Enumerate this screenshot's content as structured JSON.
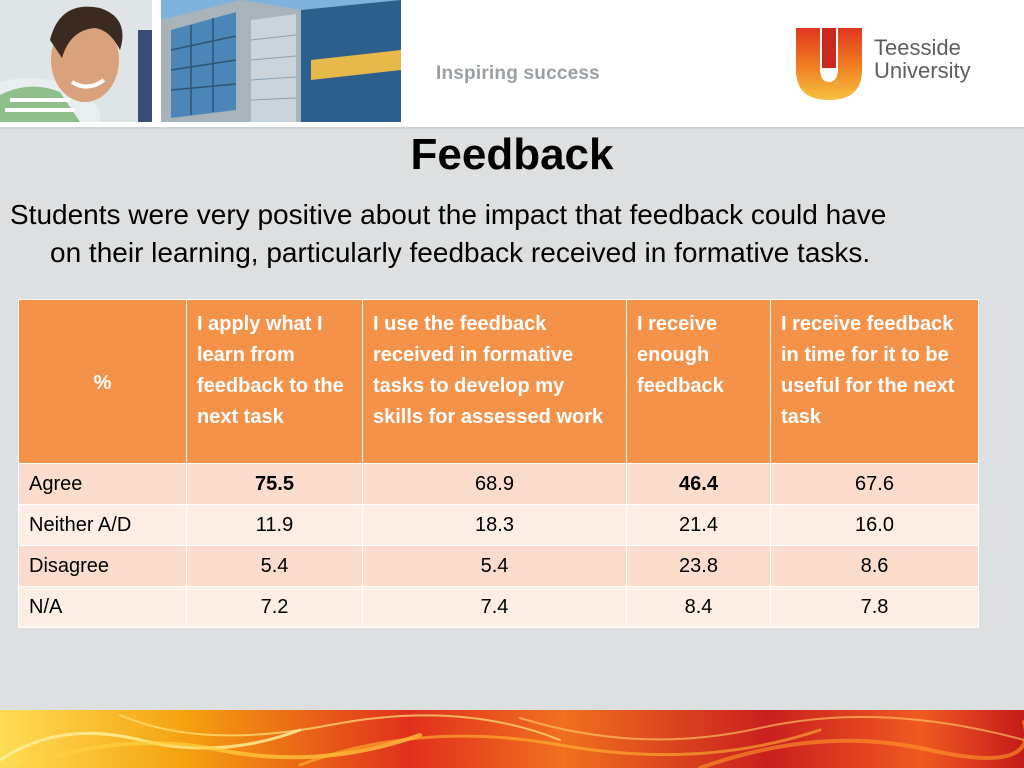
{
  "header": {
    "tagline": "Inspiring success",
    "logo_words": [
      "Teesside",
      "University"
    ]
  },
  "slide": {
    "title": "Feedback",
    "intro_line1": "Students were very positive about the impact that feedback could have",
    "intro_line2": "on their learning, particularly feedback received in formative tasks."
  },
  "table": {
    "headers": [
      "%",
      "I apply what I learn from feedback to the next task",
      "I use the feedback received in formative tasks to develop my skills for assessed work",
      "I receive enough feedback",
      "I receive feedback in time for it to be useful for the next task"
    ],
    "rows": [
      {
        "label": "Agree",
        "values": [
          "75.5",
          "68.9",
          "46.4",
          "67.6"
        ]
      },
      {
        "label": "Neither A/D",
        "values": [
          "11.9",
          "18.3",
          "21.4",
          "16.0"
        ]
      },
      {
        "label": "Disagree",
        "values": [
          "5.4",
          "5.4",
          "23.8",
          "8.6"
        ]
      },
      {
        "label": "N/A",
        "values": [
          "7.2",
          "7.4",
          "8.4",
          "7.8"
        ]
      }
    ],
    "bold_cells": [
      "75.5",
      "46.4"
    ]
  },
  "colors": {
    "header_fill": "#f4924a",
    "row_dark": "#fbdccd",
    "row_light": "#fdeee6",
    "background": "#dde0e1"
  }
}
